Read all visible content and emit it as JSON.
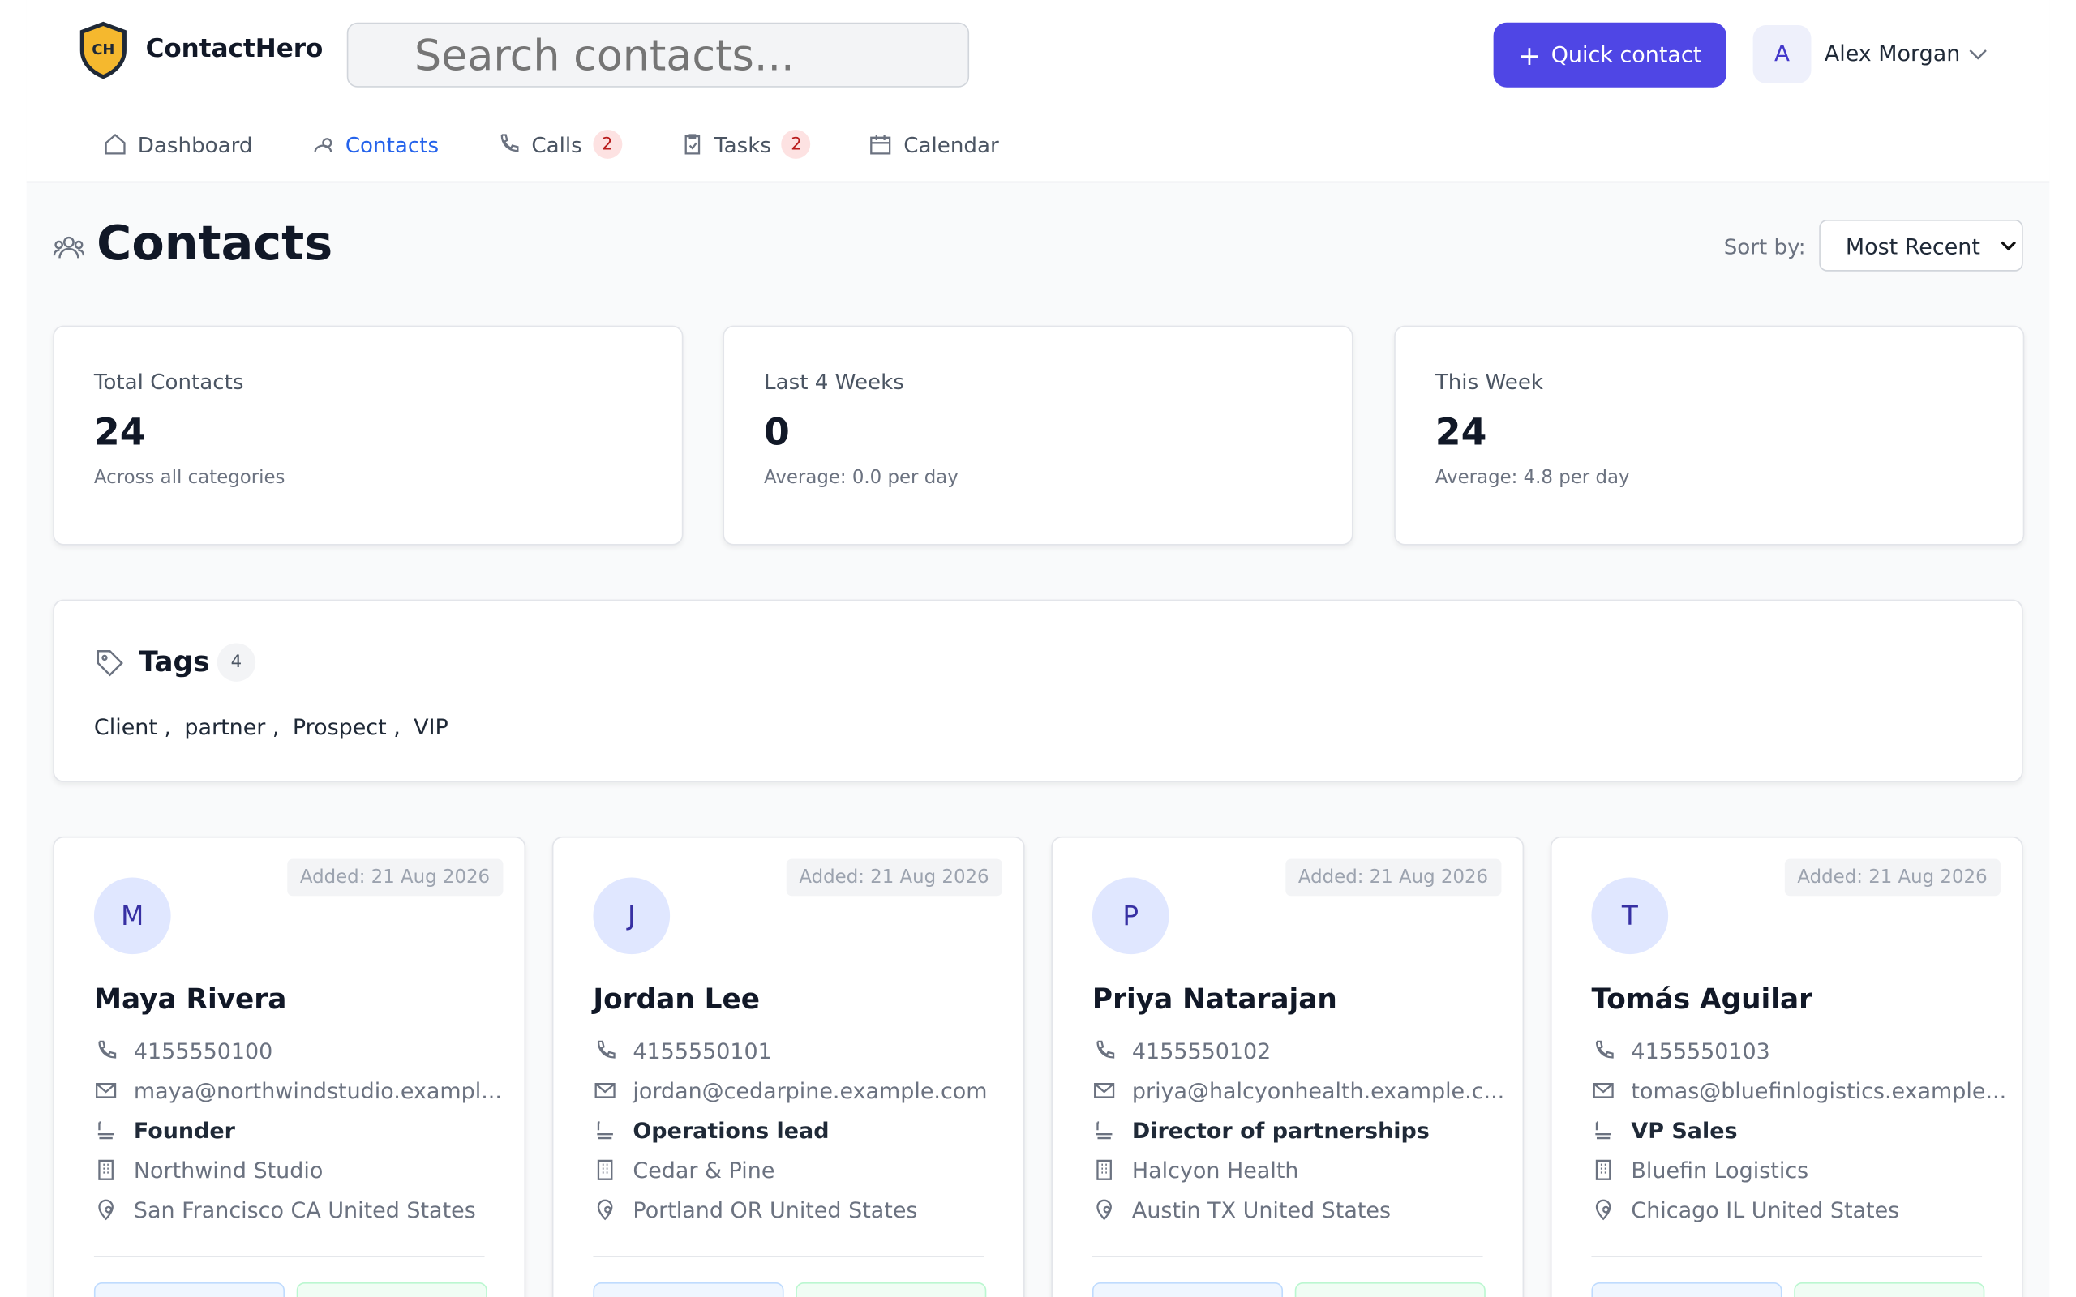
{
  "header": {
    "brand": "ContactHero",
    "logo_text": "CH",
    "search_placeholder": "Search contacts...",
    "quick_button": "Quick contact",
    "user_initial": "A",
    "user_name": "Alex Morgan"
  },
  "nav": [
    {
      "label": "Dashboard"
    },
    {
      "label": "Contacts"
    },
    {
      "label": "Calls",
      "badge": "2"
    },
    {
      "label": "Tasks",
      "badge": "2"
    },
    {
      "label": "Calendar"
    }
  ],
  "page": {
    "title": "Contacts",
    "sort_label": "Sort by:",
    "sort_value": "Most Recent"
  },
  "stats": [
    {
      "label": "Total Contacts",
      "value": "24",
      "note": "Across all categories"
    },
    {
      "label": "Last 4 Weeks",
      "value": "0",
      "note": "Average: 0.0 per day"
    },
    {
      "label": "This Week",
      "value": "24",
      "note": "Average: 4.8 per day"
    }
  ],
  "tags": {
    "title": "Tags",
    "count": "4",
    "items": [
      "Client",
      "partner",
      "Prospect",
      "VIP"
    ]
  },
  "contacts": [
    {
      "initial": "M",
      "added": "Added: 21 Aug 2026",
      "name": "Maya Rivera",
      "phone": "4155550100",
      "email": "maya@northwindstudio.exampl...",
      "role": "Founder",
      "company": "Northwind Studio",
      "location": "San Francisco CA United States"
    },
    {
      "initial": "J",
      "added": "Added: 21 Aug 2026",
      "name": "Jordan Lee",
      "phone": "4155550101",
      "email": "jordan@cedarpine.example.com",
      "role": "Operations lead",
      "company": "Cedar & Pine",
      "location": "Portland OR United States"
    },
    {
      "initial": "P",
      "added": "Added: 21 Aug 2026",
      "name": "Priya Natarajan",
      "phone": "4155550102",
      "email": "priya@halcyonhealth.example.c...",
      "role": "Director of partnerships",
      "company": "Halcyon Health",
      "location": "Austin TX United States"
    },
    {
      "initial": "T",
      "added": "Added: 21 Aug 2026",
      "name": "Tomás Aguilar",
      "phone": "4155550103",
      "email": "tomas@bluefinlogistics.example...",
      "role": "VP Sales",
      "company": "Bluefin Logistics",
      "location": "Chicago IL United States"
    }
  ]
}
